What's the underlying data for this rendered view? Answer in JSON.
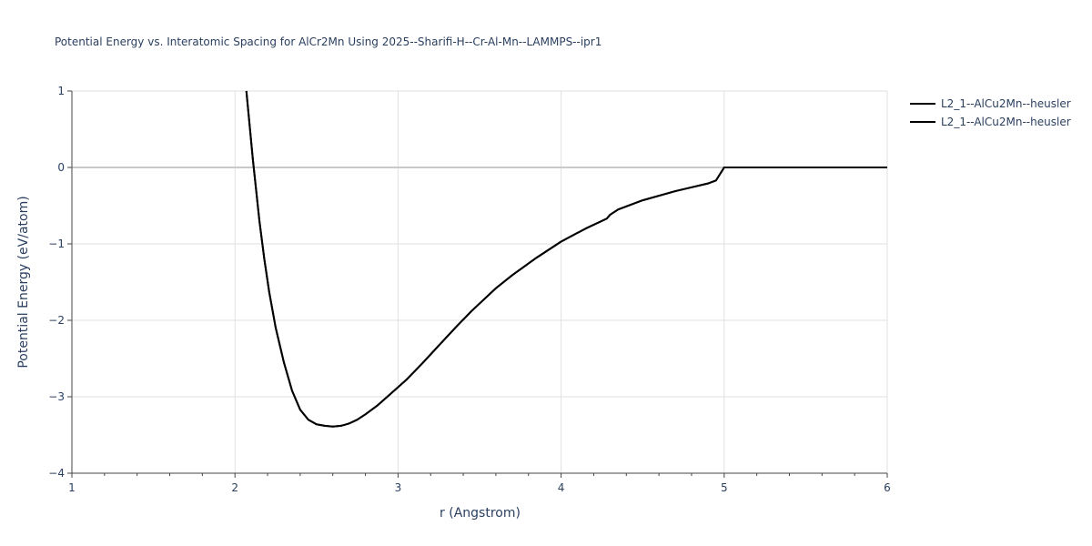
{
  "chart_data": {
    "type": "line",
    "title": "Potential Energy vs. Interatomic Spacing for AlCr2Mn Using 2025--Sharifi-H--Cr-Al-Mn--LAMMPS--ipr1",
    "xlabel": "r (Angstrom)",
    "ylabel": "Potential Energy (eV/atom)",
    "xlim": [
      1,
      6
    ],
    "ylim": [
      -4,
      1
    ],
    "xticks": [
      1,
      2,
      3,
      4,
      5,
      6
    ],
    "xtick_labels": [
      "1",
      "2",
      "3",
      "4",
      "5",
      "6"
    ],
    "yticks": [
      1,
      0,
      -1,
      -2,
      -3,
      -4
    ],
    "ytick_labels": [
      "1",
      "0",
      "−1",
      "−2",
      "−3",
      "−4"
    ],
    "grid": true,
    "legend_position": "top-right",
    "line_color": "#000000",
    "series": [
      {
        "name": "L2_1--AlCu2Mn--heusler",
        "x": [
          2.07,
          2.09,
          2.11,
          2.13,
          2.15,
          2.18,
          2.21,
          2.25,
          2.3,
          2.35,
          2.4,
          2.45,
          2.5,
          2.55,
          2.6,
          2.65,
          2.7,
          2.75,
          2.8,
          2.87,
          2.95,
          3.05,
          3.15,
          3.25,
          3.35,
          3.45,
          3.6,
          3.7,
          3.85,
          4.0,
          4.15,
          4.28,
          4.3,
          4.35,
          4.5,
          4.7,
          4.9,
          4.95,
          5.0,
          5.5,
          6.0
        ],
        "y": [
          1.0,
          0.55,
          0.1,
          -0.3,
          -0.7,
          -1.2,
          -1.63,
          -2.1,
          -2.55,
          -2.92,
          -3.17,
          -3.3,
          -3.36,
          -3.38,
          -3.39,
          -3.38,
          -3.35,
          -3.3,
          -3.23,
          -3.12,
          -2.97,
          -2.78,
          -2.56,
          -2.33,
          -2.1,
          -1.88,
          -1.58,
          -1.41,
          -1.18,
          -0.97,
          -0.8,
          -0.67,
          -0.62,
          -0.55,
          -0.43,
          -0.31,
          -0.21,
          -0.17,
          0.0,
          0.0,
          0.0
        ]
      },
      {
        "name": "L2_1--AlCu2Mn--heusler",
        "x": [
          2.07,
          2.09,
          2.11,
          2.13,
          2.15,
          2.18,
          2.21,
          2.25,
          2.3,
          2.35,
          2.4,
          2.45,
          2.5,
          2.55,
          2.6,
          2.65,
          2.7,
          2.75,
          2.8,
          2.87,
          2.95,
          3.05,
          3.15,
          3.25,
          3.35,
          3.45,
          3.6,
          3.7,
          3.85,
          4.0,
          4.15,
          4.28,
          4.3,
          4.35,
          4.5,
          4.7,
          4.9,
          4.95,
          5.0,
          5.5,
          6.0
        ],
        "y": [
          1.0,
          0.55,
          0.1,
          -0.3,
          -0.7,
          -1.2,
          -1.63,
          -2.1,
          -2.55,
          -2.92,
          -3.17,
          -3.3,
          -3.36,
          -3.38,
          -3.39,
          -3.38,
          -3.35,
          -3.3,
          -3.23,
          -3.12,
          -2.97,
          -2.78,
          -2.56,
          -2.33,
          -2.1,
          -1.88,
          -1.58,
          -1.41,
          -1.18,
          -0.97,
          -0.8,
          -0.67,
          -0.62,
          -0.55,
          -0.43,
          -0.31,
          -0.21,
          -0.17,
          0.0,
          0.0,
          0.0
        ]
      }
    ]
  }
}
